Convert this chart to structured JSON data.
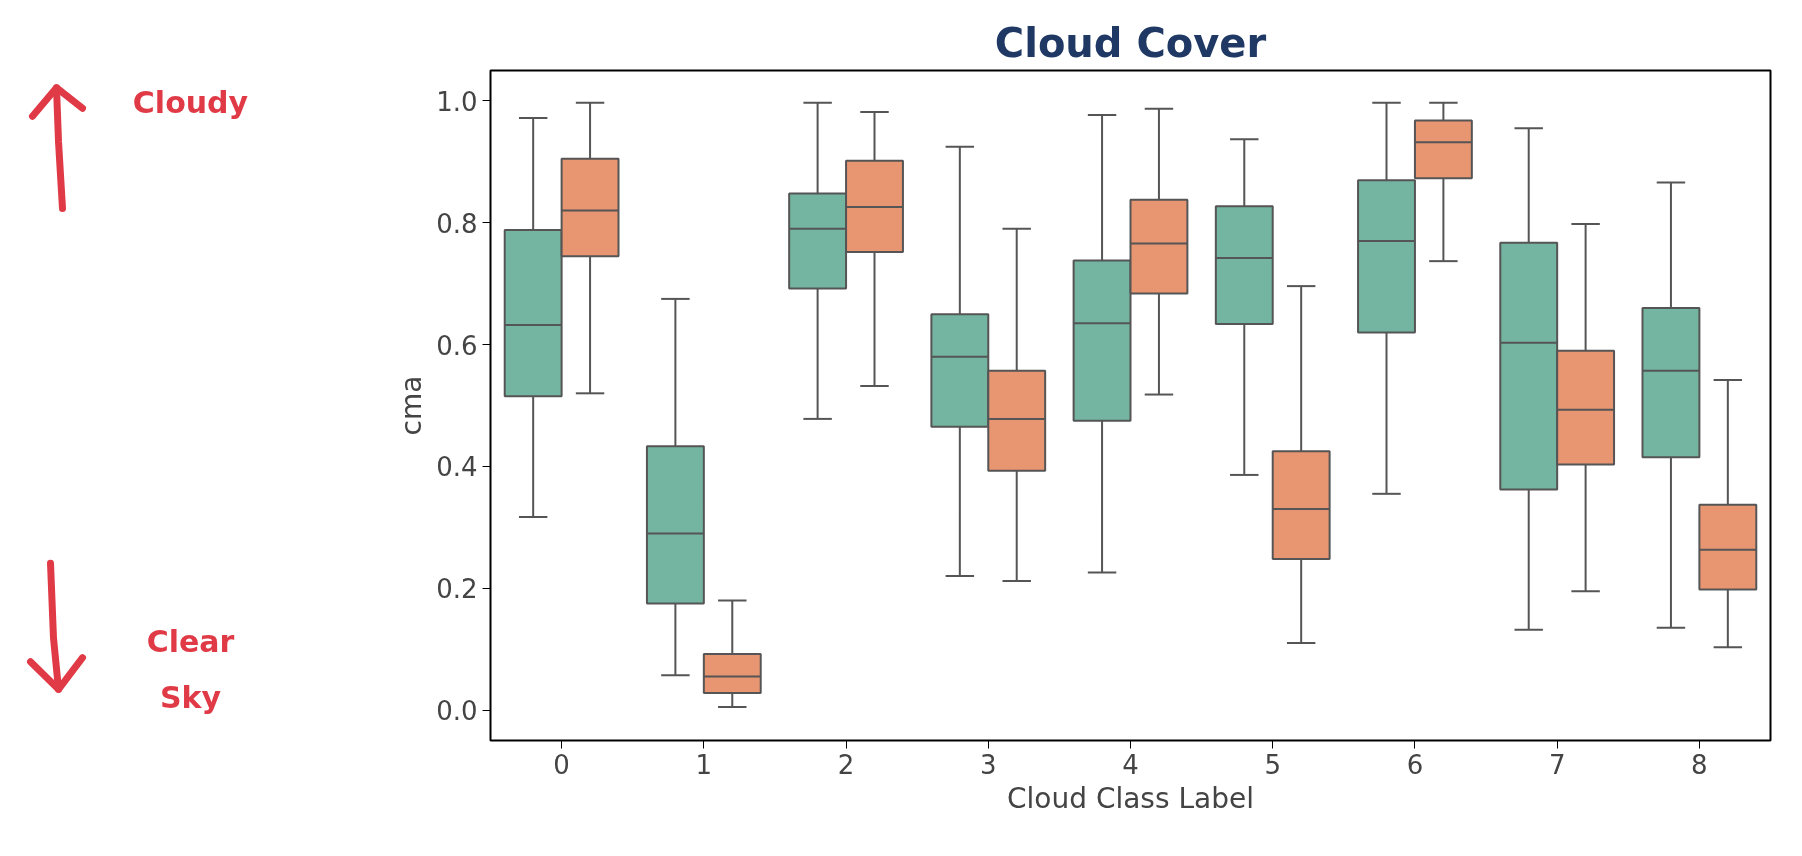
{
  "chart_data": {
    "type": "box",
    "title": "Cloud Cover",
    "xlabel": "Cloud Class Label",
    "ylabel": "cma",
    "categories": [
      "0",
      "1",
      "2",
      "3",
      "4",
      "5",
      "6",
      "7",
      "8"
    ],
    "ylim": [
      -0.05,
      1.05
    ],
    "yticks": [
      {
        "value": 0,
        "label": "0.0"
      },
      {
        "value": 0.2,
        "label": "0.2"
      },
      {
        "value": 0.4,
        "label": "0.4"
      },
      {
        "value": 0.6,
        "label": "0.6"
      },
      {
        "value": 0.8,
        "label": "0.8"
      },
      {
        "value": 1,
        "label": "1.0"
      }
    ],
    "grid": false,
    "annotations": [
      "Cloudy",
      "Clear\nSky"
    ],
    "series": [
      {
        "color": "#73b5a0",
        "boxes": [
          {
            "low": 0.317,
            "q1": 0.515,
            "median": 0.632,
            "q3": 0.788,
            "high": 0.972
          },
          {
            "low": 0.057,
            "q1": 0.175,
            "median": 0.29,
            "q3": 0.433,
            "high": 0.675
          },
          {
            "low": 0.478,
            "q1": 0.692,
            "median": 0.79,
            "q3": 0.848,
            "high": 0.997
          },
          {
            "low": 0.22,
            "q1": 0.465,
            "median": 0.58,
            "q3": 0.65,
            "high": 0.925
          },
          {
            "low": 0.226,
            "q1": 0.475,
            "median": 0.635,
            "q3": 0.738,
            "high": 0.977
          },
          {
            "low": 0.386,
            "q1": 0.634,
            "median": 0.742,
            "q3": 0.827,
            "high": 0.937
          },
          {
            "low": 0.355,
            "q1": 0.62,
            "median": 0.77,
            "q3": 0.87,
            "high": 0.997
          },
          {
            "low": 0.132,
            "q1": 0.362,
            "median": 0.603,
            "q3": 0.767,
            "high": 0.955
          },
          {
            "low": 0.135,
            "q1": 0.415,
            "median": 0.557,
            "q3": 0.66,
            "high": 0.866
          }
        ]
      },
      {
        "color": "#e89672",
        "boxes": [
          {
            "low": 0.52,
            "q1": 0.745,
            "median": 0.82,
            "q3": 0.905,
            "high": 0.997
          },
          {
            "low": 0.005,
            "q1": 0.028,
            "median": 0.055,
            "q3": 0.092,
            "high": 0.18
          },
          {
            "low": 0.532,
            "q1": 0.752,
            "median": 0.826,
            "q3": 0.902,
            "high": 0.982
          },
          {
            "low": 0.212,
            "q1": 0.393,
            "median": 0.478,
            "q3": 0.557,
            "high": 0.79
          },
          {
            "low": 0.518,
            "q1": 0.684,
            "median": 0.766,
            "q3": 0.838,
            "high": 0.987
          },
          {
            "low": 0.11,
            "q1": 0.248,
            "median": 0.33,
            "q3": 0.425,
            "high": 0.696
          },
          {
            "low": 0.737,
            "q1": 0.873,
            "median": 0.932,
            "q3": 0.968,
            "high": 0.997
          },
          {
            "low": 0.195,
            "q1": 0.403,
            "median": 0.493,
            "q3": 0.59,
            "high": 0.798
          },
          {
            "low": 0.103,
            "q1": 0.198,
            "median": 0.263,
            "q3": 0.337,
            "high": 0.542
          }
        ]
      }
    ]
  }
}
